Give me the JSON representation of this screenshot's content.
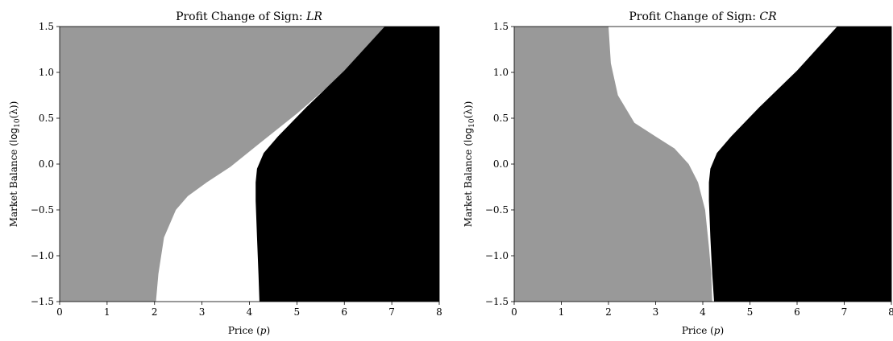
{
  "chart_data": [
    {
      "type": "heatmap",
      "title_prefix": "Profit Change of Sign: ",
      "title_var": "LR",
      "xlabel_prefix": "Price (",
      "xlabel_var": "p",
      "xlabel_suffix": ")",
      "ylabel_prefix": "Market Balance (",
      "ylabel_fn": "log",
      "ylabel_sub": "10",
      "ylabel_arg": "(λ)",
      "ylabel_suffix": ")",
      "xlim": [
        0,
        8
      ],
      "ylim": [
        -1.5,
        1.5
      ],
      "xticks": [
        "0",
        "1",
        "2",
        "3",
        "4",
        "5",
        "6",
        "7",
        "8"
      ],
      "yticks": [
        "−1.5",
        "−1.0",
        "−0.5",
        "0.0",
        "0.5",
        "1.0",
        "1.5"
      ],
      "colors": {
        "gray_region": "#999999",
        "white_region": "#ffffff",
        "black_region": "#000000"
      },
      "boundaries": {
        "gray_white": [
          [
            2.03,
            -1.5
          ],
          [
            2.08,
            -1.2
          ],
          [
            2.2,
            -0.8
          ],
          [
            2.45,
            -0.5
          ],
          [
            2.7,
            -0.35
          ],
          [
            3.1,
            -0.2
          ],
          [
            3.6,
            -0.03
          ],
          [
            4.2,
            0.22
          ],
          [
            5.0,
            0.55
          ],
          [
            6.0,
            1.0
          ],
          [
            6.9,
            1.5
          ]
        ],
        "white_black": [
          [
            4.21,
            -1.5
          ],
          [
            4.19,
            -1.2
          ],
          [
            4.16,
            -0.8
          ],
          [
            4.13,
            -0.4
          ],
          [
            4.13,
            -0.2
          ],
          [
            4.16,
            -0.05
          ],
          [
            4.3,
            0.12
          ],
          [
            4.6,
            0.3
          ],
          [
            5.2,
            0.62
          ],
          [
            6.0,
            1.02
          ],
          [
            6.85,
            1.5
          ]
        ]
      }
    },
    {
      "type": "heatmap",
      "title_prefix": "Profit Change of Sign: ",
      "title_var": "CR",
      "xlabel_prefix": "Price (",
      "xlabel_var": "p",
      "xlabel_suffix": ")",
      "ylabel_prefix": "Market Balance (",
      "ylabel_fn": "log",
      "ylabel_sub": "10",
      "ylabel_arg": "(λ)",
      "ylabel_suffix": ")",
      "xlim": [
        0,
        8
      ],
      "ylim": [
        -1.5,
        1.5
      ],
      "xticks": [
        "0",
        "1",
        "2",
        "3",
        "4",
        "5",
        "6",
        "7",
        "8"
      ],
      "yticks": [
        "−1.5",
        "−1.0",
        "−0.5",
        "0.0",
        "0.5",
        "1.0",
        "1.5"
      ],
      "colors": {
        "gray_region": "#999999",
        "white_region": "#ffffff",
        "black_region": "#000000"
      },
      "boundaries": {
        "gray_white": [
          [
            2.0,
            1.5
          ],
          [
            2.05,
            1.1
          ],
          [
            2.2,
            0.75
          ],
          [
            2.55,
            0.45
          ],
          [
            3.0,
            0.3
          ],
          [
            3.4,
            0.17
          ],
          [
            3.7,
            0.0
          ],
          [
            3.9,
            -0.2
          ],
          [
            4.05,
            -0.5
          ],
          [
            4.13,
            -0.9
          ],
          [
            4.18,
            -1.2
          ],
          [
            4.2,
            -1.5
          ]
        ],
        "white_black": [
          [
            4.24,
            -1.5
          ],
          [
            4.2,
            -1.2
          ],
          [
            4.16,
            -0.8
          ],
          [
            4.13,
            -0.4
          ],
          [
            4.13,
            -0.2
          ],
          [
            4.16,
            -0.05
          ],
          [
            4.3,
            0.12
          ],
          [
            4.6,
            0.3
          ],
          [
            5.2,
            0.62
          ],
          [
            6.0,
            1.02
          ],
          [
            6.85,
            1.5
          ]
        ]
      }
    }
  ]
}
